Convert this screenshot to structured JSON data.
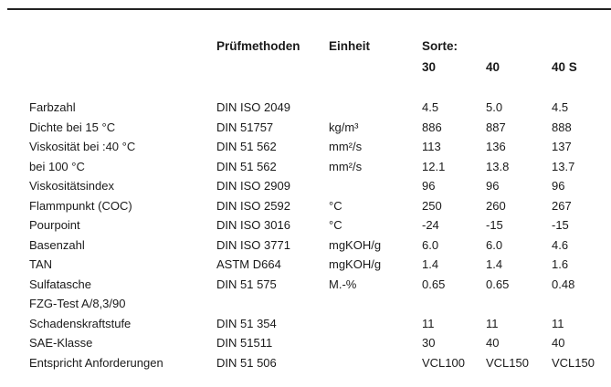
{
  "header": {
    "method": "Prüfmethoden",
    "unit": "Einheit",
    "grade_label": "Sorte:",
    "grades": [
      "30",
      "40",
      "40 S"
    ]
  },
  "rows": [
    {
      "property": "Farbzahl",
      "method": "DIN ISO 2049",
      "unit": "",
      "values": [
        "4.5",
        "5.0",
        "4.5"
      ]
    },
    {
      "property": "Dichte bei 15 °C",
      "method": "DIN 51757",
      "unit": "kg/m³",
      "values": [
        "886",
        "887",
        "888"
      ]
    },
    {
      "property": "Viskosität bei :40 °C",
      "method": "DIN 51 562",
      "unit": "mm²/s",
      "values": [
        "113",
        "136",
        "137"
      ]
    },
    {
      "property": "bei  100 °C",
      "method": "DIN 51 562",
      "unit": "mm²/s",
      "values": [
        "12.1",
        "13.8",
        "13.7"
      ]
    },
    {
      "property": "Viskositätsindex",
      "method": "DIN ISO 2909",
      "unit": "",
      "values": [
        "96",
        "96",
        "96"
      ]
    },
    {
      "property": "Flammpunkt (COC)",
      "method": "DIN ISO 2592",
      "unit": "°C",
      "values": [
        "250",
        "260",
        "267"
      ]
    },
    {
      "property": "Pourpoint",
      "method": "DIN ISO 3016",
      "unit": "°C",
      "values": [
        "-24",
        "-15",
        "-15"
      ]
    },
    {
      "property": "Basenzahl",
      "method": "DIN ISO 3771",
      "unit": "mgKOH/g",
      "values": [
        "6.0",
        "6.0",
        "4.6"
      ]
    },
    {
      "property": "TAN",
      "method": "ASTM D664",
      "unit": "mgKOH/g",
      "values": [
        "1.4",
        "1.4",
        "1.6"
      ]
    },
    {
      "property": "Sulfatasche",
      "method": "DIN 51 575",
      "unit": "M.-%",
      "values": [
        "0.65",
        "0.65",
        "0.48"
      ]
    },
    {
      "property": "FZG-Test A/8,3/90",
      "method": "",
      "unit": "",
      "values": [
        "",
        "",
        ""
      ]
    },
    {
      "property": "Schadenskraftstufe",
      "method": "DIN 51 354",
      "unit": "",
      "values": [
        "11",
        "11",
        "11"
      ]
    },
    {
      "property": "SAE-Klasse",
      "method": "DIN 51511",
      "unit": "",
      "values": [
        "30",
        "40",
        "40"
      ]
    },
    {
      "property": "Entspricht Anforderungen",
      "method": "DIN 51 506",
      "unit": "",
      "values": [
        "VCL100",
        "VCL150",
        "VCL150"
      ]
    }
  ]
}
